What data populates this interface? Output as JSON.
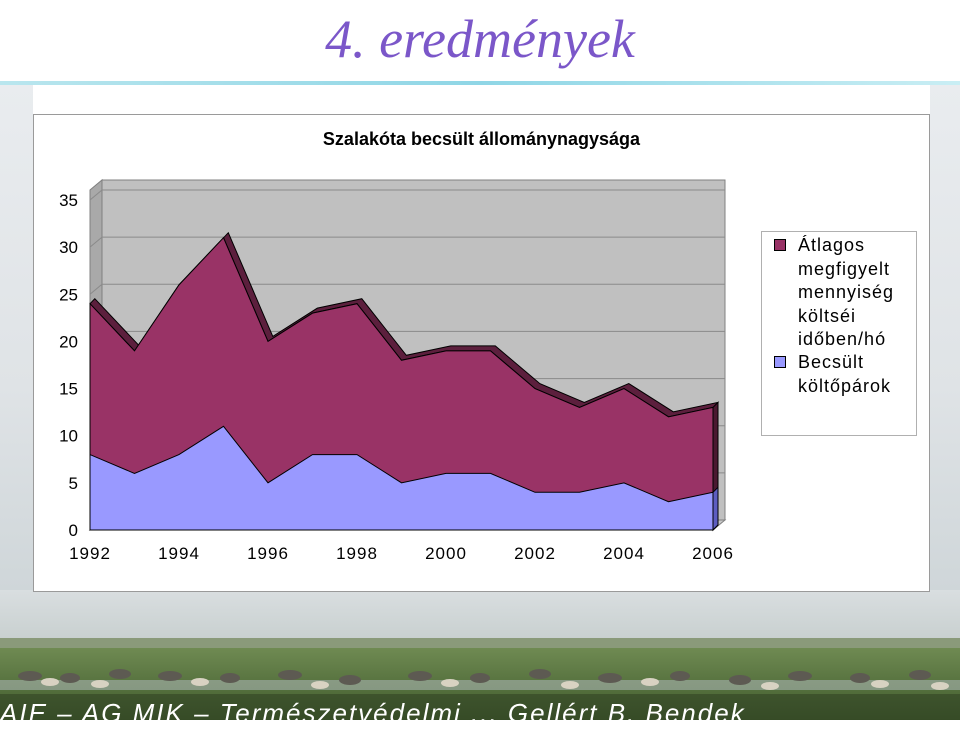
{
  "slide": {
    "title": "4. eredmények",
    "footer": "AIE – AG MIK – Természetvédelmi ... Gellért B. Bendek"
  },
  "colors": {
    "title": "#7b57c9",
    "series_atlagos": "#993366",
    "series_becsult": "#9999ff",
    "plot_bg": "#c0c0c0"
  },
  "chart_data": {
    "type": "area",
    "title": "Szalakóta becsült állománynagysága",
    "xlabel": "",
    "ylabel": "",
    "x": [
      1992,
      1993,
      1994,
      1995,
      1996,
      1997,
      1998,
      1999,
      2000,
      2001,
      2002,
      2003,
      2004,
      2005,
      2006
    ],
    "x_tick_labels": [
      "1992",
      "1994",
      "1996",
      "1998",
      "2000",
      "2002",
      "2004",
      "2006"
    ],
    "y_tick_labels": [
      "0",
      "5",
      "10",
      "15",
      "20",
      "25",
      "30",
      "35"
    ],
    "ylim": [
      0,
      35
    ],
    "grid": true,
    "legend_position": "right",
    "three_d": true,
    "series": [
      {
        "name": "Átlagos megfigyelt mennyiség költséi időben/hó",
        "values": [
          24,
          19,
          26,
          31,
          20,
          23,
          24,
          18,
          19,
          19,
          15,
          13,
          15,
          12,
          13
        ]
      },
      {
        "name": "Becsült költőpárok",
        "values": [
          8,
          6,
          8,
          11,
          5,
          8,
          8,
          5,
          6,
          6,
          4,
          4,
          5,
          3,
          4
        ]
      }
    ]
  }
}
